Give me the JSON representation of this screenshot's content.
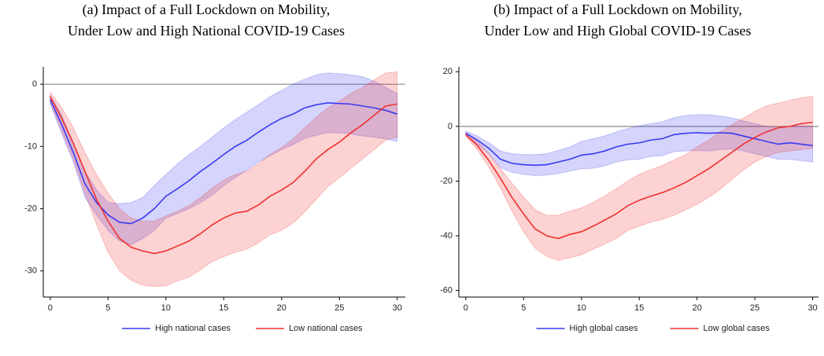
{
  "chart_data": [
    {
      "type": "line",
      "title": [
        "(a) Impact of a Full Lockdown on Mobility,",
        "Under Low and High National COVID-19 Cases"
      ],
      "x": [
        0,
        1,
        2,
        3,
        4,
        5,
        6,
        7,
        8,
        9,
        10,
        11,
        12,
        13,
        14,
        15,
        16,
        17,
        18,
        19,
        20,
        21,
        22,
        23,
        24,
        25,
        26,
        27,
        28,
        29,
        30
      ],
      "xlim": [
        -0.6,
        30.7
      ],
      "xticks": [
        0,
        5,
        10,
        15,
        20,
        25,
        30
      ],
      "ylim": [
        -34.2,
        2.8
      ],
      "yticks": [
        0,
        -10,
        -20,
        -30
      ],
      "hline": 0,
      "series": [
        {
          "name": "High national cases",
          "color": "#3a3af0",
          "values": [
            -2.5,
            -6.5,
            -11,
            -16,
            -19,
            -21,
            -22.2,
            -22.4,
            -21.5,
            -20,
            -18,
            -16.8,
            -15.5,
            -14,
            -12.7,
            -11.3,
            -10,
            -9,
            -7.7,
            -6.5,
            -5.5,
            -4.8,
            -3.8,
            -3.3,
            -3,
            -3.1,
            -3.2,
            -3.5,
            -3.8,
            -4.2,
            -4.8
          ],
          "upper": [
            -1.8,
            -5,
            -9.5,
            -14,
            -17,
            -19,
            -19.2,
            -19,
            -18.2,
            -16.3,
            -14.5,
            -12.8,
            -11.3,
            -10,
            -8.5,
            -7,
            -5.7,
            -4.5,
            -3.3,
            -2,
            -1,
            0,
            0.8,
            1.5,
            1.8,
            1.7,
            1.5,
            1.2,
            0.5,
            -0.5,
            -1.5
          ],
          "lower": [
            -3.2,
            -8,
            -12.5,
            -18.2,
            -21,
            -23.5,
            -25.2,
            -25.8,
            -24.8,
            -23.5,
            -21.5,
            -20.8,
            -20,
            -19,
            -17.8,
            -16.3,
            -15,
            -13.8,
            -12.5,
            -11.5,
            -10.5,
            -9.7,
            -8.7,
            -8.2,
            -7.8,
            -7.8,
            -8,
            -8.3,
            -8.5,
            -8.8,
            -9.2
          ]
        },
        {
          "name": "Low national cases",
          "color": "#f03030",
          "values": [
            -2,
            -5.5,
            -9.5,
            -14,
            -18.5,
            -22,
            -24.8,
            -26.2,
            -26.8,
            -27.2,
            -26.8,
            -26,
            -25.2,
            -24,
            -22.6,
            -21.5,
            -20.7,
            -20.4,
            -19.4,
            -18,
            -17,
            -15.8,
            -14,
            -12,
            -10.5,
            -9.3,
            -7.8,
            -6.5,
            -5,
            -3.5,
            -3.2
          ],
          "upper": [
            -1.3,
            -3.8,
            -7,
            -11,
            -14.5,
            -17.5,
            -20,
            -21.5,
            -22,
            -22,
            -21.2,
            -20.4,
            -19.5,
            -18.2,
            -16.7,
            -15.4,
            -14.5,
            -14,
            -12.8,
            -11.3,
            -10.2,
            -8.8,
            -7,
            -5.3,
            -3.8,
            -2.7,
            -1.5,
            -0.5,
            0.7,
            1.8,
            2
          ],
          "lower": [
            -2.7,
            -7.5,
            -12,
            -17.5,
            -22.5,
            -27,
            -30,
            -31.5,
            -32.3,
            -32.5,
            -32.4,
            -31.6,
            -31,
            -29.8,
            -28.5,
            -27.7,
            -27,
            -26.5,
            -25.5,
            -24.2,
            -23.5,
            -22.3,
            -20.5,
            -18.5,
            -16.5,
            -15,
            -13.5,
            -12,
            -10.5,
            -9,
            -8.5
          ]
        }
      ]
    },
    {
      "type": "line",
      "title": [
        "(b) Impact of a Full Lockdown on Mobility,",
        "Under Low and High Global COVID-19 Cases"
      ],
      "x": [
        0,
        1,
        2,
        3,
        4,
        5,
        6,
        7,
        8,
        9,
        10,
        11,
        12,
        13,
        14,
        15,
        16,
        17,
        18,
        19,
        20,
        21,
        22,
        23,
        24,
        25,
        26,
        27,
        28,
        29,
        30
      ],
      "xlim": [
        -0.6,
        30.5
      ],
      "xticks": [
        0,
        5,
        10,
        15,
        20,
        25,
        30
      ],
      "ylim": [
        -62.4,
        21.8
      ],
      "yticks": [
        20,
        0,
        -20,
        -40,
        -60
      ],
      "hline": 0,
      "series": [
        {
          "name": "High global cases",
          "color": "#3a3af0",
          "values": [
            -2.5,
            -5,
            -8,
            -12,
            -13.5,
            -14,
            -14.2,
            -14,
            -13,
            -12,
            -10.5,
            -10,
            -9,
            -7.5,
            -6.5,
            -6,
            -5,
            -4.5,
            -3,
            -2.5,
            -2.3,
            -2.5,
            -2.3,
            -2.5,
            -3.5,
            -4.5,
            -5.5,
            -6.5,
            -6,
            -6.5,
            -7
          ],
          "upper": [
            -1.8,
            -3.5,
            -6,
            -9,
            -10,
            -10.3,
            -10.3,
            -10,
            -8.8,
            -7.5,
            -5.5,
            -4.5,
            -3.5,
            -2,
            -0.8,
            0.2,
            1,
            1.7,
            3.2,
            4,
            4.3,
            4.3,
            3.8,
            3.2,
            2,
            1,
            0,
            -0.5,
            0,
            0.2,
            0
          ],
          "lower": [
            -3.2,
            -6.5,
            -10,
            -15,
            -16.8,
            -17.5,
            -18,
            -17.8,
            -17.2,
            -16.3,
            -15.5,
            -15.3,
            -14.5,
            -13,
            -12.2,
            -12,
            -11,
            -10.7,
            -9.2,
            -9,
            -8.8,
            -9,
            -8.5,
            -8.3,
            -9,
            -10,
            -11,
            -12,
            -12,
            -12.5,
            -13
          ]
        },
        {
          "name": "Low global cases",
          "color": "#f03030",
          "values": [
            -3,
            -7,
            -12.5,
            -19,
            -26,
            -32,
            -37.5,
            -40,
            -41,
            -39.5,
            -38.5,
            -36.5,
            -34.3,
            -32,
            -29,
            -27,
            -25.5,
            -24.2,
            -22.5,
            -20.5,
            -18,
            -15.5,
            -12.5,
            -9.5,
            -6.5,
            -4,
            -2,
            -0.5,
            0,
            1,
            1.5
          ],
          "upper": [
            -2.3,
            -5.5,
            -10,
            -15.5,
            -20.8,
            -25.8,
            -30.5,
            -32.5,
            -32.5,
            -31,
            -29.8,
            -27.8,
            -25.5,
            -22.8,
            -20,
            -17.5,
            -15.8,
            -14.3,
            -12.3,
            -10.3,
            -7.5,
            -5,
            -2,
            0.5,
            3,
            5.5,
            7.5,
            8.5,
            9.5,
            10.5,
            11
          ],
          "lower": [
            -3.7,
            -8.5,
            -15,
            -22.5,
            -31,
            -38.5,
            -44.5,
            -47.5,
            -49,
            -48,
            -47,
            -45,
            -43,
            -41,
            -38,
            -36.5,
            -35,
            -34,
            -32.5,
            -30.5,
            -28.5,
            -26,
            -23,
            -19.5,
            -16,
            -13,
            -11,
            -9.5,
            -9,
            -8.5,
            -8
          ]
        }
      ]
    }
  ]
}
